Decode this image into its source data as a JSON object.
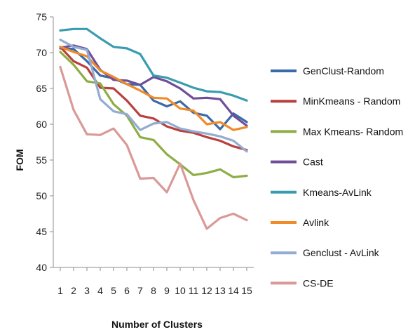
{
  "chart_data": {
    "type": "line",
    "title": "",
    "xlabel": "Number of Clusters",
    "ylabel": "FOM",
    "x": [
      1,
      2,
      3,
      4,
      5,
      6,
      7,
      8,
      9,
      10,
      11,
      12,
      13,
      14,
      15
    ],
    "ylim": [
      40,
      75
    ],
    "yticks": [
      40,
      45,
      50,
      55,
      60,
      65,
      70,
      75
    ],
    "grid": false,
    "legend_position": "right",
    "series": [
      {
        "name": "GenClust-Random",
        "color": "#3a6aa8",
        "values": [
          70.6,
          70.5,
          68.8,
          66.8,
          66.4,
          65.6,
          65.5,
          63.3,
          62.5,
          63.2,
          61.6,
          61.2,
          59.3,
          61.5,
          60.3
        ]
      },
      {
        "name": "MinKmeans - Random",
        "color": "#b8403e",
        "values": [
          70.8,
          68.8,
          67.9,
          65.1,
          65.0,
          63.3,
          61.2,
          60.8,
          59.7,
          59.1,
          58.8,
          58.2,
          57.7,
          56.9,
          56.4
        ]
      },
      {
        "name": "Max Kmeans- Random",
        "color": "#8ead45",
        "values": [
          70.1,
          68.3,
          66.0,
          65.7,
          62.8,
          61.2,
          58.2,
          57.8,
          55.8,
          54.4,
          52.9,
          53.2,
          53.7,
          52.6,
          52.8
        ]
      },
      {
        "name": "Cast",
        "color": "#6f4e9a",
        "values": [
          70.7,
          71.0,
          70.5,
          67.6,
          66.2,
          66.1,
          65.5,
          66.6,
          66.0,
          65.0,
          63.6,
          63.7,
          63.5,
          61.2,
          59.8
        ]
      },
      {
        "name": "Kmeans-AvLink",
        "color": "#3a9cb0",
        "values": [
          73.1,
          73.3,
          73.3,
          72.0,
          70.8,
          70.6,
          69.8,
          66.8,
          66.5,
          65.8,
          65.1,
          64.6,
          64.5,
          64.0,
          63.3
        ]
      },
      {
        "name": "Avlink",
        "color": "#f08a2a",
        "values": [
          70.8,
          70.1,
          69.5,
          67.5,
          66.6,
          65.6,
          64.7,
          63.7,
          63.6,
          62.2,
          61.9,
          60.0,
          60.3,
          59.2,
          59.6
        ]
      },
      {
        "name": "Genclust - AvLink",
        "color": "#93acd2",
        "values": [
          71.8,
          70.8,
          70.4,
          63.5,
          61.8,
          61.4,
          59.2,
          60.1,
          60.3,
          59.4,
          59.0,
          58.7,
          58.3,
          57.7,
          56.2
        ]
      },
      {
        "name": "CS-DE",
        "color": "#d99a97",
        "values": [
          68.0,
          62.0,
          58.6,
          58.5,
          59.4,
          57.1,
          52.4,
          52.5,
          50.5,
          54.5,
          49.4,
          45.4,
          46.9,
          47.5,
          46.6
        ]
      }
    ]
  }
}
